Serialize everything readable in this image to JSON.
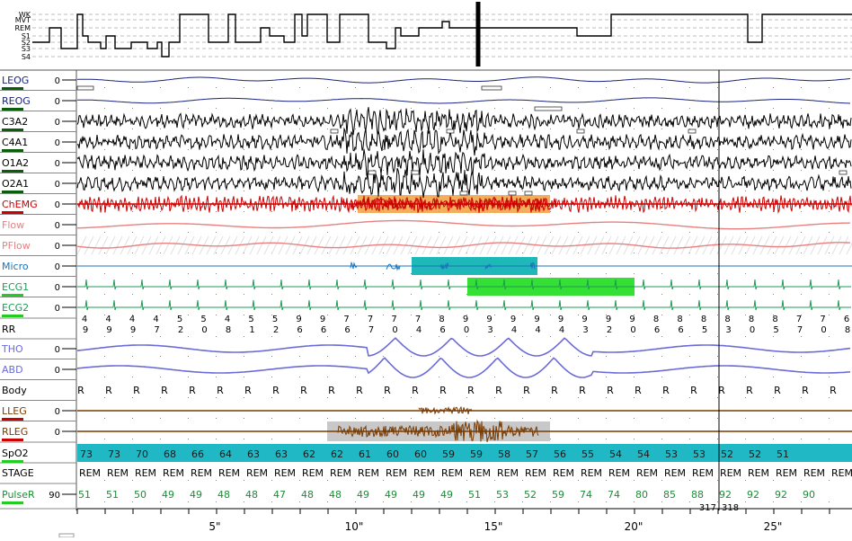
{
  "hypnogram": {
    "stage_labels": [
      "WK",
      "MVT",
      "REM",
      "S1",
      "S2",
      "S3",
      "S4"
    ]
  },
  "channels": [
    {
      "label": "LEOG",
      "zero": "0",
      "color": "#1a237e",
      "bar": "#0a5d0a"
    },
    {
      "label": "REOG",
      "zero": "0",
      "color": "#1a237e",
      "bar": "#0a5d0a"
    },
    {
      "label": "C3A2",
      "zero": "0",
      "color": "#000000",
      "bar": "#0a5d0a"
    },
    {
      "label": "C4A1",
      "zero": "0",
      "color": "#000000",
      "bar": "#0a5d0a"
    },
    {
      "label": "O1A2",
      "zero": "0",
      "color": "#000000",
      "bar": "#0a5d0a"
    },
    {
      "label": "O2A1",
      "zero": "0",
      "color": "#000000",
      "bar": "#0a5d0a"
    },
    {
      "label": "ChEMG",
      "zero": "0",
      "color": "#cc0000",
      "bar": "#cc0000"
    },
    {
      "label": "Flow",
      "zero": "0",
      "color": "#e88080",
      "bar": ""
    },
    {
      "label": "PFlow",
      "zero": "0",
      "color": "#e88080",
      "bar": ""
    },
    {
      "label": "Micro",
      "zero": "0",
      "color": "#1a73b8",
      "bar": ""
    },
    {
      "label": "ECG1",
      "zero": "0",
      "color": "#1f9a55",
      "bar": "#22cc22"
    },
    {
      "label": "ECG2",
      "zero": "0",
      "color": "#1f9a55",
      "bar": "#22cc22"
    },
    {
      "label": "RR",
      "zero": "",
      "color": "#000000",
      "bar": ""
    },
    {
      "label": "THO",
      "zero": "0",
      "color": "#6b6bd8",
      "bar": ""
    },
    {
      "label": "ABD",
      "zero": "0",
      "color": "#6b6bd8",
      "bar": ""
    },
    {
      "label": "Body",
      "zero": "",
      "color": "#000000",
      "bar": ""
    },
    {
      "label": "LLEG",
      "zero": "0",
      "color": "#7a3a00",
      "bar": "#cc0000"
    },
    {
      "label": "RLEG",
      "zero": "0",
      "color": "#7a3a00",
      "bar": "#cc0000"
    },
    {
      "label": "SpO2",
      "zero": "",
      "color": "#000000",
      "bar": "#22cc22"
    },
    {
      "label": "STAGE",
      "zero": "",
      "color": "#000000",
      "bar": ""
    },
    {
      "label": "PulseR",
      "zero": "90",
      "color": "#1f8a3a",
      "bar": "#22cc22"
    }
  ],
  "rr_values": [
    [
      "4",
      "9"
    ],
    [
      "4",
      "9"
    ],
    [
      "4",
      "9"
    ],
    [
      "4",
      "7"
    ],
    [
      "5",
      "2"
    ],
    [
      "5",
      "0"
    ],
    [
      "4",
      "8"
    ],
    [
      "5",
      "1"
    ],
    [
      "5",
      "2"
    ],
    [
      "9",
      "6"
    ],
    [
      "9",
      "6"
    ],
    [
      "7",
      "6"
    ],
    [
      "7",
      "7"
    ],
    [
      "7",
      "0"
    ],
    [
      "7",
      "4"
    ],
    [
      "8",
      "6"
    ],
    [
      "9",
      "0"
    ],
    [
      "9",
      "3"
    ],
    [
      "9",
      "4"
    ],
    [
      "9",
      "4"
    ],
    [
      "9",
      "4"
    ],
    [
      "9",
      "3"
    ],
    [
      "9",
      "2"
    ],
    [
      "9",
      "0"
    ],
    [
      "8",
      "6"
    ],
    [
      "8",
      "6"
    ],
    [
      "8",
      "5"
    ],
    [
      "8",
      "3"
    ],
    [
      "8",
      "0"
    ],
    [
      "8",
      "5"
    ],
    [
      "7",
      "7"
    ],
    [
      "7",
      "0"
    ],
    [
      "6",
      "8"
    ]
  ],
  "body_values": [
    "R",
    "R",
    "R",
    "R",
    "R",
    "R",
    "R",
    "R",
    "R",
    "R",
    "R",
    "R",
    "R",
    "R",
    "R",
    "R",
    "R",
    "R",
    "R",
    "R",
    "R",
    "R",
    "R",
    "R",
    "R",
    "R",
    "R",
    "R"
  ],
  "spo2_values": [
    "73",
    "73",
    "70",
    "68",
    "66",
    "64",
    "63",
    "63",
    "62",
    "62",
    "61",
    "60",
    "60",
    "59",
    "59",
    "58",
    "57",
    "56",
    "55",
    "54",
    "54",
    "53",
    "53",
    "52",
    "52",
    "51"
  ],
  "stage_values": [
    "REM",
    "REM",
    "REM",
    "REM",
    "REM",
    "REM",
    "REM",
    "REM",
    "REM",
    "REM",
    "REM",
    "REM",
    "REM",
    "REM",
    "REM",
    "REM",
    "REM",
    "REM",
    "REM",
    "REM",
    "REM",
    "REM",
    "REM",
    "REM",
    "REM",
    "REM",
    "REM",
    "REM"
  ],
  "pulse_values": [
    "51",
    "51",
    "50",
    "49",
    "49",
    "48",
    "48",
    "47",
    "48",
    "48",
    "49",
    "49",
    "49",
    "49",
    "51",
    "53",
    "52",
    "59",
    "74",
    "74",
    "80",
    "85",
    "88",
    "92",
    "92",
    "92",
    "90"
  ],
  "epoch_markers": [
    "317",
    "318"
  ],
  "time_axis": [
    "5\"",
    "10\"",
    "15\"",
    "20\"",
    "25\""
  ],
  "colors": {
    "spo2_band": "#1fb8c4",
    "chemg_highlight": "#f0a040",
    "micro_highlight": "#1fb8b8",
    "ecg_highlight": "#33e033",
    "rleg_highlight": "#c8c8c8"
  }
}
